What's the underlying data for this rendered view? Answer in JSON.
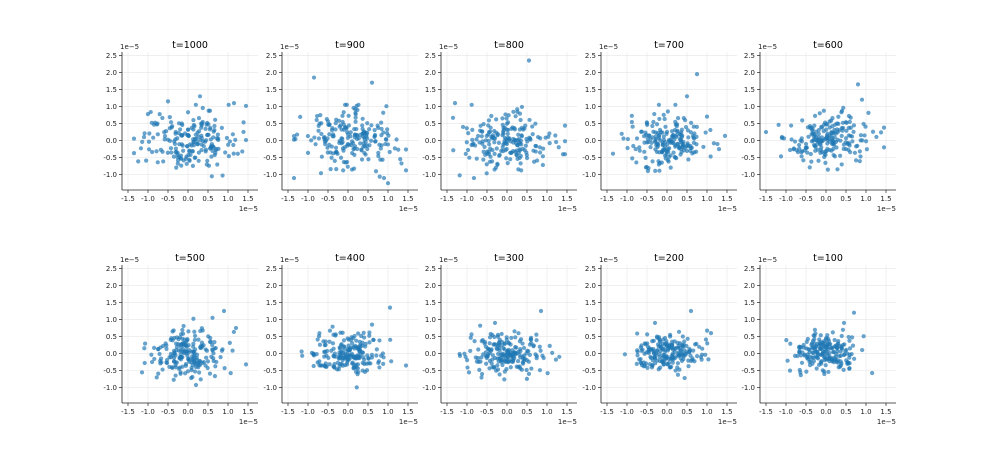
{
  "figure": {
    "seed_note": "",
    "ylim": [
      -1.45,
      2.6
    ],
    "xlim": [
      -1.65,
      1.75
    ],
    "xticks": [
      "-1.5",
      "-1.0",
      "-0.5",
      "0.0",
      "0.5",
      "1.0",
      "1.5"
    ],
    "yticks": [
      "-1.0",
      "-0.5",
      "0.0",
      "0.5",
      "1.0",
      "1.5",
      "2.0",
      "2.5"
    ],
    "x_multiplier": "1e−5",
    "y_multiplier": "1e−5",
    "colors": {
      "point": "#1f77b4",
      "axis": "#222222",
      "grid": "#e6e6e6"
    }
  },
  "chart_data": [
    {
      "type": "scatter",
      "title": "t=1000",
      "spread": [
        0.6,
        0.42
      ],
      "outliers": [
        [
          0.3,
          1.3
        ],
        [
          1.15,
          1.1
        ],
        [
          -0.5,
          1.15
        ]
      ]
    },
    {
      "type": "scatter",
      "title": "t=900",
      "spread": [
        0.58,
        0.42
      ],
      "outliers": [
        [
          -0.85,
          1.85
        ],
        [
          0.6,
          1.7
        ],
        [
          1.0,
          -1.25
        ]
      ]
    },
    {
      "type": "scatter",
      "title": "t=800",
      "spread": [
        0.55,
        0.4
      ],
      "outliers": [
        [
          0.55,
          2.35
        ],
        [
          -1.3,
          1.1
        ],
        [
          1.4,
          -0.4
        ]
      ]
    },
    {
      "type": "scatter",
      "title": "t=700",
      "spread": [
        0.52,
        0.38
      ],
      "outliers": [
        [
          0.75,
          1.95
        ],
        [
          0.5,
          1.3
        ],
        [
          1.3,
          -0.25
        ]
      ]
    },
    {
      "type": "scatter",
      "title": "t=600",
      "spread": [
        0.5,
        0.38
      ],
      "outliers": [
        [
          0.8,
          1.65
        ],
        [
          0.9,
          1.2
        ],
        [
          -1.5,
          0.25
        ]
      ]
    },
    {
      "type": "scatter",
      "title": "t=500",
      "spread": [
        0.48,
        0.35
      ],
      "outliers": [
        [
          0.9,
          1.25
        ],
        [
          1.2,
          0.75
        ],
        [
          -1.15,
          -0.55
        ]
      ]
    },
    {
      "type": "scatter",
      "title": "t=400",
      "spread": [
        0.46,
        0.33
      ],
      "outliers": [
        [
          1.05,
          1.35
        ],
        [
          0.6,
          0.85
        ],
        [
          1.45,
          -0.35
        ]
      ]
    },
    {
      "type": "scatter",
      "title": "t=300",
      "spread": [
        0.44,
        0.3
      ],
      "outliers": [
        [
          0.85,
          1.25
        ],
        [
          -0.3,
          0.9
        ],
        [
          -0.95,
          -0.55
        ]
      ]
    },
    {
      "type": "scatter",
      "title": "t=200",
      "spread": [
        0.42,
        0.28
      ],
      "outliers": [
        [
          0.6,
          1.25
        ],
        [
          -0.3,
          0.9
        ],
        [
          1.1,
          0.6
        ]
      ]
    },
    {
      "type": "scatter",
      "title": "t=100",
      "spread": [
        0.4,
        0.27
      ],
      "outliers": [
        [
          0.7,
          1.2
        ],
        [
          0.45,
          0.9
        ],
        [
          -0.9,
          -0.5
        ]
      ]
    }
  ]
}
